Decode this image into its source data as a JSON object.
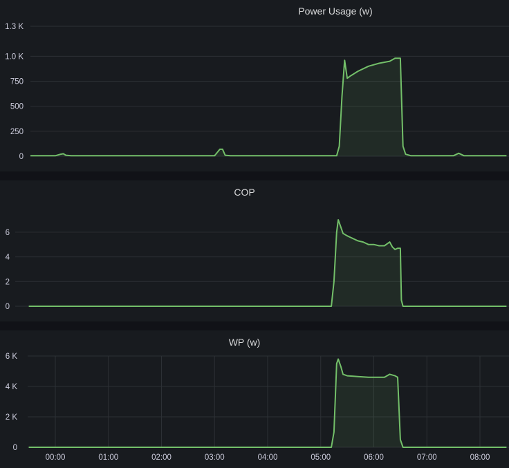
{
  "colors": {
    "page_bg": "#111217",
    "panel_bg": "#181b1f",
    "grid": "#2c3035",
    "series_line": "#73bf69",
    "series_fill": "#73bf69",
    "text": "#ccccdc"
  },
  "chart_data": [
    {
      "type": "area",
      "title": "Power Usage (w)",
      "xlabel": "",
      "ylabel": "",
      "ylim": [
        0,
        1300
      ],
      "yticks": [
        0,
        250,
        500,
        750,
        1000,
        1300
      ],
      "ytick_labels": [
        "0",
        "250",
        "500",
        "750",
        "1.0 K",
        "1.3 K"
      ],
      "xlim": [
        -0.5,
        8.5
      ],
      "xticks": [],
      "xtick_labels": [],
      "grid": true,
      "legend": "none",
      "series": [
        {
          "name": "",
          "x": [
            -0.5,
            0.0,
            0.1,
            0.15,
            0.2,
            0.3,
            3.0,
            3.1,
            3.15,
            3.2,
            3.3,
            5.3,
            5.35,
            5.4,
            5.45,
            5.5,
            5.55,
            5.7,
            5.9,
            6.1,
            6.3,
            6.4,
            6.5,
            6.55,
            6.6,
            6.7,
            7.5,
            7.6,
            7.7,
            8.5
          ],
          "y": [
            5,
            5,
            20,
            25,
            10,
            5,
            5,
            70,
            70,
            10,
            5,
            5,
            100,
            600,
            960,
            780,
            800,
            850,
            900,
            930,
            950,
            980,
            980,
            100,
            20,
            5,
            5,
            30,
            5,
            5
          ]
        }
      ]
    },
    {
      "type": "area",
      "title": "COP",
      "xlabel": "",
      "ylabel": "",
      "ylim": [
        0,
        7
      ],
      "yticks": [
        0,
        2,
        4,
        6
      ],
      "ytick_labels": [
        "0",
        "2",
        "4",
        "6"
      ],
      "xlim": [
        -0.5,
        8.5
      ],
      "xticks": [],
      "xtick_labels": [],
      "grid": true,
      "legend": "none",
      "series": [
        {
          "name": "",
          "x": [
            -0.5,
            5.2,
            5.25,
            5.3,
            5.33,
            5.38,
            5.42,
            5.5,
            5.6,
            5.7,
            5.8,
            5.9,
            6.0,
            6.1,
            6.2,
            6.3,
            6.35,
            6.4,
            6.45,
            6.5,
            6.52,
            6.55,
            8.5
          ],
          "y": [
            0,
            0,
            2,
            6.0,
            7.0,
            6.4,
            5.9,
            5.7,
            5.5,
            5.3,
            5.2,
            5.0,
            5.0,
            4.9,
            4.9,
            5.2,
            4.8,
            4.6,
            4.7,
            4.7,
            0.5,
            0,
            0
          ]
        }
      ]
    },
    {
      "type": "area",
      "title": "WP (w)",
      "xlabel": "",
      "ylabel": "",
      "ylim": [
        0,
        6000
      ],
      "yticks": [
        0,
        2000,
        4000,
        6000
      ],
      "ytick_labels": [
        "0",
        "2 K",
        "4 K",
        "6 K"
      ],
      "xlim": [
        -0.5,
        8.5
      ],
      "xticks": [
        0,
        1,
        2,
        3,
        4,
        5,
        6,
        7,
        8
      ],
      "xtick_labels": [
        "00:00",
        "01:00",
        "02:00",
        "03:00",
        "04:00",
        "05:00",
        "06:00",
        "07:00",
        "08:00"
      ],
      "grid": true,
      "legend": "none",
      "series": [
        {
          "name": "",
          "x": [
            -0.5,
            5.2,
            5.25,
            5.3,
            5.33,
            5.38,
            5.42,
            5.5,
            5.7,
            5.9,
            6.0,
            6.1,
            6.2,
            6.3,
            6.4,
            6.45,
            6.5,
            6.55,
            8.5
          ],
          "y": [
            0,
            0,
            1000,
            5500,
            5800,
            5300,
            4800,
            4700,
            4650,
            4600,
            4600,
            4600,
            4600,
            4800,
            4700,
            4600,
            500,
            0,
            0
          ]
        }
      ]
    }
  ]
}
